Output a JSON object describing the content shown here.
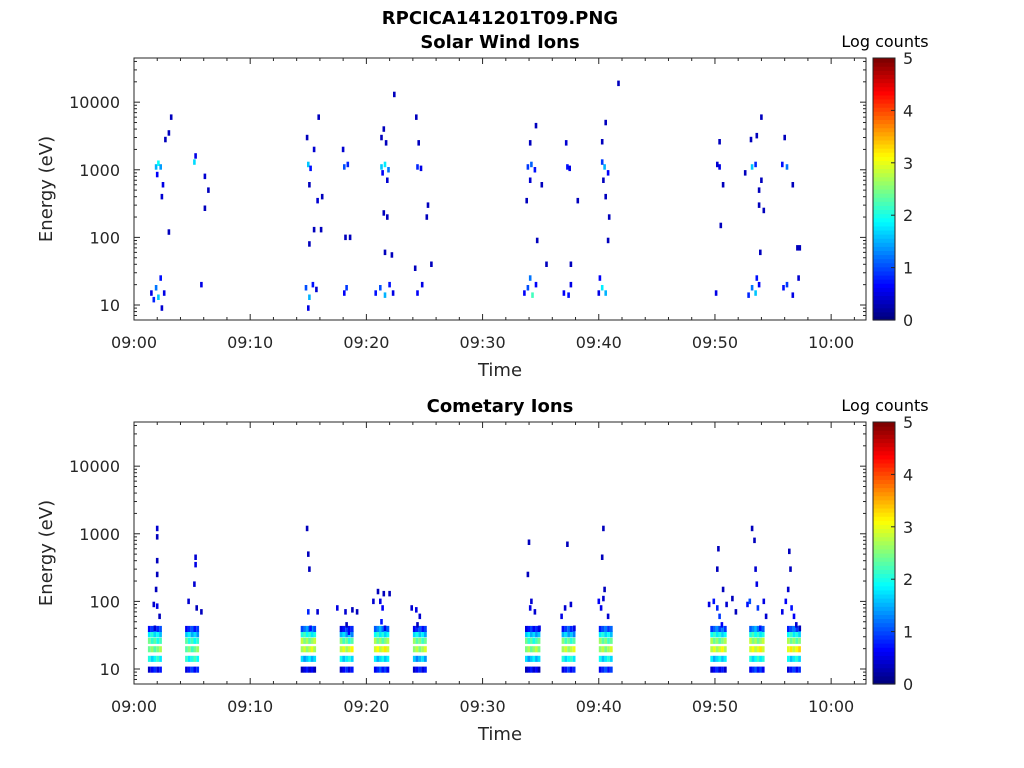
{
  "figure_title": "RPCICA141201T09.PNG",
  "chart_data": [
    {
      "type": "heatmap",
      "title": "Solar Wind Ions",
      "xlabel": "Time",
      "ylabel": "Energy (eV)",
      "x_ticks": [
        "09:00",
        "09:10",
        "09:20",
        "09:30",
        "09:40",
        "09:50",
        "10:00"
      ],
      "y_ticks": [
        "10",
        "100",
        "1000",
        "10000"
      ],
      "y_scale": "log",
      "xlim": [
        "09:00",
        "10:03"
      ],
      "ylim": [
        6,
        45000
      ],
      "colorbar": {
        "label": "Log counts",
        "ticks": [
          "0",
          "1",
          "2",
          "3",
          "4",
          "5"
        ],
        "range": [
          0,
          5
        ],
        "colormap": "jet"
      },
      "cells": [
        [
          1.5,
          15,
          0.5
        ],
        [
          1.7,
          12,
          0.8
        ],
        [
          1.9,
          18,
          1.2
        ],
        [
          2.1,
          13,
          1.6
        ],
        [
          2.3,
          25,
          0.7
        ],
        [
          2.6,
          15,
          0.5
        ],
        [
          2.4,
          9,
          0.4
        ],
        [
          1.9,
          1100,
          1.5
        ],
        [
          2.1,
          1250,
          1.9
        ],
        [
          2.3,
          1100,
          1.4
        ],
        [
          2.0,
          850,
          0.6
        ],
        [
          2.5,
          600,
          0.5
        ],
        [
          2.4,
          400,
          0.4
        ],
        [
          2.7,
          2800,
          0.3
        ],
        [
          3.0,
          3500,
          0.3
        ],
        [
          3.2,
          6000,
          0.3
        ],
        [
          3.0,
          120,
          0.3
        ],
        [
          5.2,
          1300,
          1.7
        ],
        [
          5.3,
          1600,
          0.5
        ],
        [
          5.8,
          20,
          0.5
        ],
        [
          6.1,
          800,
          0.4
        ],
        [
          6.4,
          500,
          0.3
        ],
        [
          6.1,
          270,
          0.3
        ],
        [
          14.8,
          18,
          1.0
        ],
        [
          15.1,
          13,
          1.5
        ],
        [
          15.4,
          20,
          0.7
        ],
        [
          15.0,
          9,
          0.5
        ],
        [
          15.7,
          17,
          0.4
        ],
        [
          15.0,
          1200,
          1.6
        ],
        [
          15.2,
          1050,
          0.7
        ],
        [
          14.9,
          3000,
          0.3
        ],
        [
          15.5,
          2000,
          0.4
        ],
        [
          15.9,
          6000,
          0.3
        ],
        [
          15.8,
          350,
          0.4
        ],
        [
          16.2,
          400,
          0.3
        ],
        [
          15.1,
          600,
          0.3
        ],
        [
          15.5,
          130,
          0.3
        ],
        [
          16.1,
          130,
          0.3
        ],
        [
          15.1,
          80,
          0.3
        ],
        [
          18.1,
          15,
          0.6
        ],
        [
          18.3,
          18,
          0.9
        ],
        [
          18.1,
          1100,
          1.0
        ],
        [
          18.4,
          1200,
          0.8
        ],
        [
          18.0,
          2000,
          0.4
        ],
        [
          18.2,
          100,
          0.3
        ],
        [
          18.6,
          100,
          0.3
        ],
        [
          20.8,
          15,
          0.7
        ],
        [
          21.2,
          18,
          1.0
        ],
        [
          21.6,
          14,
          1.5
        ],
        [
          22.0,
          20,
          0.7
        ],
        [
          22.3,
          15,
          0.5
        ],
        [
          21.3,
          1100,
          1.6
        ],
        [
          21.6,
          1200,
          1.8
        ],
        [
          21.9,
          1000,
          1.2
        ],
        [
          21.4,
          900,
          0.6
        ],
        [
          21.8,
          700,
          0.4
        ],
        [
          21.3,
          3000,
          0.3
        ],
        [
          21.5,
          4000,
          0.3
        ],
        [
          21.7,
          2500,
          0.3
        ],
        [
          22.4,
          13000,
          0.3
        ],
        [
          21.8,
          200,
          0.3
        ],
        [
          21.5,
          230,
          0.3
        ],
        [
          21.6,
          60,
          0.3
        ],
        [
          22.2,
          55,
          0.3
        ],
        [
          24.2,
          35,
          0.3
        ],
        [
          24.4,
          15,
          0.6
        ],
        [
          24.8,
          20,
          0.5
        ],
        [
          24.3,
          6000,
          0.3
        ],
        [
          24.5,
          2500,
          0.3
        ],
        [
          24.4,
          1100,
          0.8
        ],
        [
          24.7,
          1050,
          0.5
        ],
        [
          25.3,
          300,
          0.3
        ],
        [
          25.2,
          200,
          0.3
        ],
        [
          25.6,
          40,
          0.3
        ],
        [
          33.6,
          15,
          0.6
        ],
        [
          33.9,
          18,
          1.0
        ],
        [
          34.1,
          25,
          1.2
        ],
        [
          34.3,
          14,
          2.2
        ],
        [
          34.6,
          20,
          0.6
        ],
        [
          33.9,
          1100,
          0.9
        ],
        [
          34.2,
          1200,
          1.1
        ],
        [
          34.5,
          1000,
          0.7
        ],
        [
          34.1,
          2500,
          0.3
        ],
        [
          34.6,
          4500,
          0.3
        ],
        [
          34.1,
          700,
          0.4
        ],
        [
          33.8,
          350,
          0.3
        ],
        [
          35.1,
          600,
          0.3
        ],
        [
          34.7,
          90,
          0.3
        ],
        [
          35.5,
          40,
          0.3
        ],
        [
          37.0,
          15,
          0.6
        ],
        [
          37.4,
          14,
          0.7
        ],
        [
          37.6,
          20,
          0.5
        ],
        [
          37.2,
          2500,
          0.4
        ],
        [
          37.3,
          1100,
          0.7
        ],
        [
          37.5,
          1050,
          0.5
        ],
        [
          38.2,
          350,
          0.3
        ],
        [
          37.6,
          40,
          0.3
        ],
        [
          40.0,
          15,
          0.5
        ],
        [
          40.3,
          18,
          1.8
        ],
        [
          40.6,
          15,
          1.5
        ],
        [
          40.1,
          25,
          0.6
        ],
        [
          40.5,
          1100,
          1.5
        ],
        [
          40.3,
          1300,
          0.9
        ],
        [
          40.8,
          900,
          0.6
        ],
        [
          40.3,
          2600,
          0.3
        ],
        [
          40.6,
          5000,
          0.3
        ],
        [
          41.7,
          19000,
          0.3
        ],
        [
          40.4,
          700,
          0.3
        ],
        [
          40.6,
          400,
          0.3
        ],
        [
          40.9,
          200,
          0.3
        ],
        [
          40.8,
          90,
          0.3
        ],
        [
          50.1,
          15,
          0.5
        ],
        [
          50.4,
          1100,
          0.5
        ],
        [
          50.4,
          2600,
          0.3
        ],
        [
          50.5,
          150,
          0.3
        ],
        [
          50.2,
          1200,
          0.4
        ],
        [
          50.7,
          600,
          0.3
        ],
        [
          52.9,
          14,
          0.8
        ],
        [
          53.2,
          18,
          1.2
        ],
        [
          53.5,
          15,
          1.6
        ],
        [
          53.6,
          25,
          0.7
        ],
        [
          53.8,
          20,
          0.6
        ],
        [
          53.2,
          1100,
          1.6
        ],
        [
          53.5,
          1200,
          0.8
        ],
        [
          53.1,
          2800,
          0.3
        ],
        [
          53.6,
          3200,
          0.3
        ],
        [
          54.0,
          6000,
          0.3
        ],
        [
          52.6,
          900,
          0.3
        ],
        [
          53.8,
          500,
          0.3
        ],
        [
          54.0,
          700,
          0.3
        ],
        [
          54.2,
          250,
          0.3
        ],
        [
          53.9,
          60,
          0.3
        ],
        [
          53.8,
          300,
          0.3
        ],
        [
          55.9,
          18,
          0.7
        ],
        [
          56.2,
          20,
          0.9
        ],
        [
          56.7,
          14,
          0.5
        ],
        [
          56.0,
          3000,
          0.3
        ],
        [
          56.2,
          1100,
          1.2
        ],
        [
          55.8,
          1200,
          0.7
        ],
        [
          56.7,
          600,
          0.3
        ],
        [
          57.1,
          70,
          0.3
        ],
        [
          57.3,
          70,
          0.3
        ],
        [
          57.2,
          25,
          0.4
        ]
      ]
    },
    {
      "type": "heatmap",
      "title": "Cometary Ions",
      "xlabel": "Time",
      "ylabel": "Energy (eV)",
      "x_ticks": [
        "09:00",
        "09:10",
        "09:20",
        "09:30",
        "09:40",
        "09:50",
        "10:00"
      ],
      "y_ticks": [
        "10",
        "100",
        "1000",
        "10000"
      ],
      "y_scale": "log",
      "xlim": [
        "09:00",
        "10:03"
      ],
      "ylim": [
        6,
        45000
      ],
      "colorbar": {
        "label": "Log counts",
        "ticks": [
          "0",
          "1",
          "2",
          "3",
          "4",
          "5"
        ],
        "range": [
          0,
          5
        ],
        "colormap": "jet"
      },
      "bands": [
        {
          "t": 1.8,
          "w": 1.2,
          "levels": [
            0.6,
            1.9,
            2.5,
            2.2,
            1.8,
            0.9
          ]
        },
        {
          "t": 5.0,
          "w": 1.2,
          "levels": [
            0.7,
            2.0,
            2.4,
            2.1,
            1.6,
            0.8
          ]
        },
        {
          "t": 15.0,
          "w": 1.3,
          "levels": [
            0.5,
            1.6,
            2.8,
            2.6,
            2.0,
            1.2
          ]
        },
        {
          "t": 18.3,
          "w": 1.2,
          "levels": [
            0.6,
            1.8,
            2.9,
            2.3,
            1.5,
            0.7
          ]
        },
        {
          "t": 21.3,
          "w": 1.3,
          "levels": [
            0.8,
            1.7,
            3.0,
            2.5,
            1.9,
            1.3
          ]
        },
        {
          "t": 24.6,
          "w": 1.2,
          "levels": [
            0.6,
            1.5,
            2.7,
            2.4,
            1.7,
            0.8
          ]
        },
        {
          "t": 34.3,
          "w": 1.3,
          "levels": [
            0.5,
            1.6,
            2.6,
            2.2,
            1.6,
            0.7
          ]
        },
        {
          "t": 37.4,
          "w": 1.2,
          "levels": [
            0.7,
            1.9,
            2.8,
            2.3,
            1.5,
            0.9
          ]
        },
        {
          "t": 40.6,
          "w": 1.2,
          "levels": [
            0.8,
            1.8,
            2.7,
            2.4,
            1.8,
            1.0
          ]
        },
        {
          "t": 50.3,
          "w": 1.4,
          "levels": [
            0.6,
            1.7,
            2.9,
            2.5,
            1.9,
            1.1
          ]
        },
        {
          "t": 53.6,
          "w": 1.3,
          "levels": [
            0.8,
            1.9,
            3.0,
            2.6,
            2.0,
            1.3
          ]
        },
        {
          "t": 56.8,
          "w": 1.2,
          "levels": [
            0.7,
            1.8,
            3.1,
            2.5,
            1.9,
            1.0
          ]
        }
      ],
      "cells": [
        [
          1.7,
          90,
          0.4
        ],
        [
          2.0,
          85,
          0.5
        ],
        [
          1.9,
          150,
          0.3
        ],
        [
          2.0,
          250,
          0.3
        ],
        [
          2.0,
          400,
          0.3
        ],
        [
          2.0,
          1200,
          0.4
        ],
        [
          2.0,
          900,
          0.3
        ],
        [
          2.2,
          60,
          0.3
        ],
        [
          1.8,
          40,
          0.4
        ],
        [
          4.7,
          100,
          0.4
        ],
        [
          5.2,
          180,
          0.4
        ],
        [
          5.3,
          350,
          0.5
        ],
        [
          5.3,
          450,
          0.4
        ],
        [
          5.4,
          80,
          0.3
        ],
        [
          5.8,
          70,
          0.3
        ],
        [
          14.9,
          1200,
          0.3
        ],
        [
          15.0,
          500,
          0.3
        ],
        [
          15.1,
          300,
          0.3
        ],
        [
          15.0,
          70,
          0.8
        ],
        [
          15.2,
          40,
          0.7
        ],
        [
          15.8,
          70,
          0.4
        ],
        [
          17.5,
          80,
          0.5
        ],
        [
          18.2,
          70,
          0.4
        ],
        [
          18.8,
          75,
          0.3
        ],
        [
          18.5,
          35,
          0.6
        ],
        [
          19.2,
          70,
          0.3
        ],
        [
          18.3,
          45,
          0.3
        ],
        [
          20.6,
          100,
          0.4
        ],
        [
          21.0,
          140,
          0.3
        ],
        [
          21.2,
          100,
          0.5
        ],
        [
          21.4,
          80,
          0.6
        ],
        [
          21.3,
          50,
          0.7
        ],
        [
          21.6,
          40,
          0.5
        ],
        [
          21.5,
          130,
          0.3
        ],
        [
          22.0,
          130,
          0.3
        ],
        [
          23.9,
          80,
          0.4
        ],
        [
          24.3,
          75,
          0.5
        ],
        [
          24.6,
          60,
          0.4
        ],
        [
          24.4,
          45,
          0.3
        ],
        [
          33.9,
          250,
          0.3
        ],
        [
          34.0,
          750,
          0.3
        ],
        [
          34.1,
          80,
          0.5
        ],
        [
          34.2,
          100,
          0.4
        ],
        [
          34.5,
          70,
          0.4
        ],
        [
          34.9,
          40,
          0.5
        ],
        [
          36.8,
          60,
          0.5
        ],
        [
          37.1,
          80,
          0.4
        ],
        [
          37.3,
          700,
          0.3
        ],
        [
          37.6,
          90,
          0.4
        ],
        [
          37.9,
          40,
          0.5
        ],
        [
          40.0,
          100,
          0.6
        ],
        [
          40.2,
          80,
          0.5
        ],
        [
          40.4,
          110,
          0.4
        ],
        [
          40.4,
          1200,
          0.3
        ],
        [
          40.3,
          450,
          0.3
        ],
        [
          40.5,
          150,
          0.3
        ],
        [
          40.8,
          60,
          0.4
        ],
        [
          49.5,
          90,
          0.5
        ],
        [
          49.9,
          100,
          0.7
        ],
        [
          50.2,
          80,
          0.8
        ],
        [
          50.4,
          60,
          0.9
        ],
        [
          50.6,
          45,
          0.6
        ],
        [
          50.2,
          300,
          0.3
        ],
        [
          50.3,
          600,
          0.3
        ],
        [
          50.7,
          150,
          0.3
        ],
        [
          51.0,
          90,
          0.4
        ],
        [
          51.5,
          110,
          0.3
        ],
        [
          51.8,
          70,
          0.3
        ],
        [
          52.8,
          90,
          0.7
        ],
        [
          53.0,
          100,
          1.0
        ],
        [
          53.2,
          1200,
          0.3
        ],
        [
          53.4,
          800,
          0.3
        ],
        [
          53.5,
          300,
          0.4
        ],
        [
          53.6,
          180,
          0.5
        ],
        [
          53.7,
          80,
          0.9
        ],
        [
          53.9,
          40,
          0.7
        ],
        [
          54.2,
          100,
          0.5
        ],
        [
          54.4,
          60,
          0.4
        ],
        [
          55.8,
          70,
          0.5
        ],
        [
          56.1,
          100,
          0.6
        ],
        [
          56.3,
          150,
          0.4
        ],
        [
          56.4,
          550,
          0.3
        ],
        [
          56.5,
          300,
          0.3
        ],
        [
          56.6,
          80,
          0.7
        ],
        [
          56.8,
          60,
          0.6
        ],
        [
          57.0,
          45,
          0.4
        ],
        [
          57.3,
          40,
          0.3
        ]
      ]
    }
  ]
}
